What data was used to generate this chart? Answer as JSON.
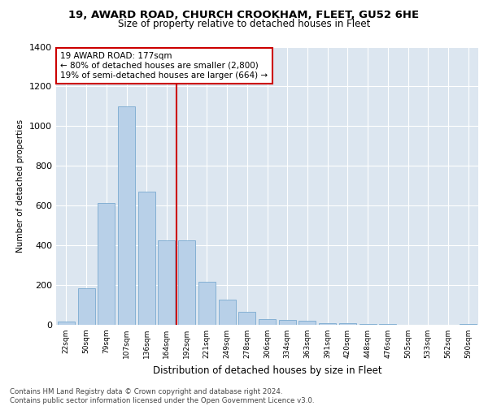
{
  "title1": "19, AWARD ROAD, CHURCH CROOKHAM, FLEET, GU52 6HE",
  "title2": "Size of property relative to detached houses in Fleet",
  "xlabel": "Distribution of detached houses by size in Fleet",
  "ylabel": "Number of detached properties",
  "footnote": "Contains HM Land Registry data © Crown copyright and database right 2024.\nContains public sector information licensed under the Open Government Licence v3.0.",
  "categories": [
    "22sqm",
    "50sqm",
    "79sqm",
    "107sqm",
    "136sqm",
    "164sqm",
    "192sqm",
    "221sqm",
    "249sqm",
    "278sqm",
    "306sqm",
    "334sqm",
    "363sqm",
    "391sqm",
    "420sqm",
    "448sqm",
    "476sqm",
    "505sqm",
    "533sqm",
    "562sqm",
    "590sqm"
  ],
  "values": [
    15,
    185,
    615,
    1100,
    670,
    425,
    425,
    215,
    125,
    65,
    30,
    25,
    20,
    10,
    8,
    5,
    3,
    2,
    2,
    1,
    5
  ],
  "bar_color": "#b8d0e8",
  "bar_edge_color": "#7aaad0",
  "vline_x_index": 5.5,
  "vline_color": "#cc0000",
  "annotation_title": "19 AWARD ROAD: 177sqm",
  "annotation_line1": "← 80% of detached houses are smaller (2,800)",
  "annotation_line2": "19% of semi-detached houses are larger (664) →",
  "annotation_box_facecolor": "#ffffff",
  "annotation_box_edgecolor": "#cc0000",
  "ylim": [
    0,
    1400
  ],
  "yticks": [
    0,
    200,
    400,
    600,
    800,
    1000,
    1200,
    1400
  ],
  "plot_bg_color": "#dce6f0",
  "grid_color": "#ffffff",
  "title1_fontsize": 9.5,
  "title2_fontsize": 8.5
}
